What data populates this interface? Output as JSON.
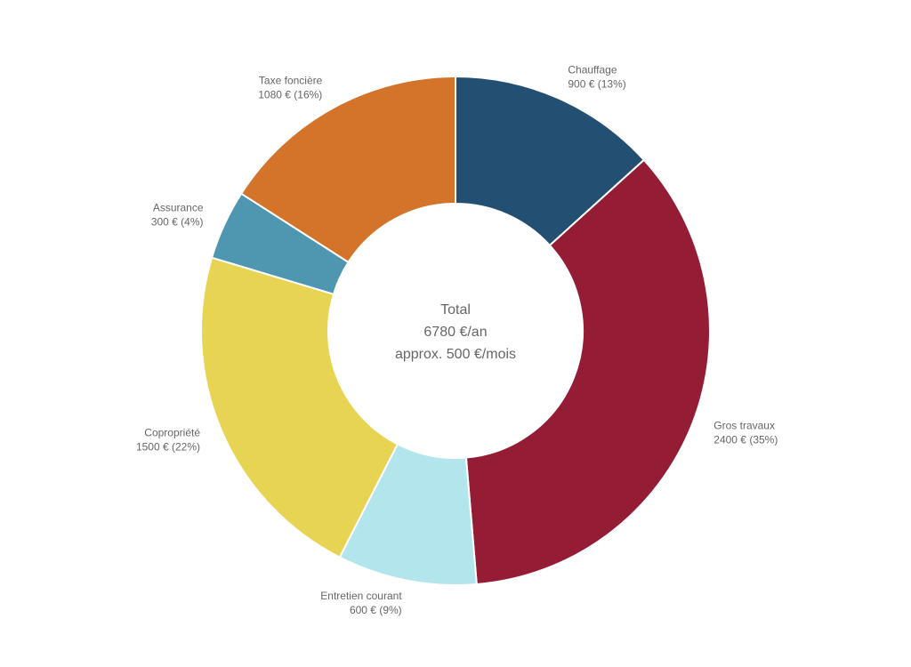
{
  "chart_data": {
    "type": "pie",
    "variant": "donut",
    "categories": [
      "Chauffage",
      "Gros travaux",
      "Entretien courant",
      "Copropriété",
      "Assurance",
      "Taxe foncière"
    ],
    "values": [
      900,
      2400,
      600,
      1500,
      300,
      1080
    ],
    "value_labels": [
      "900 € (13%)",
      "2400 € (35%)",
      "600 € (9%)",
      "1500 € (22%)",
      "300 € (4%)",
      "1080 € (16%)"
    ],
    "colors": [
      "#224f72",
      "#951c35",
      "#b3e5ec",
      "#e8d453",
      "#4f97b0",
      "#d4742b"
    ],
    "start_angle_deg": 0,
    "direction": "clockwise",
    "legend": "none",
    "center_text": [
      "Total",
      "6780 €/an",
      "approx. 500 €/mois"
    ]
  }
}
